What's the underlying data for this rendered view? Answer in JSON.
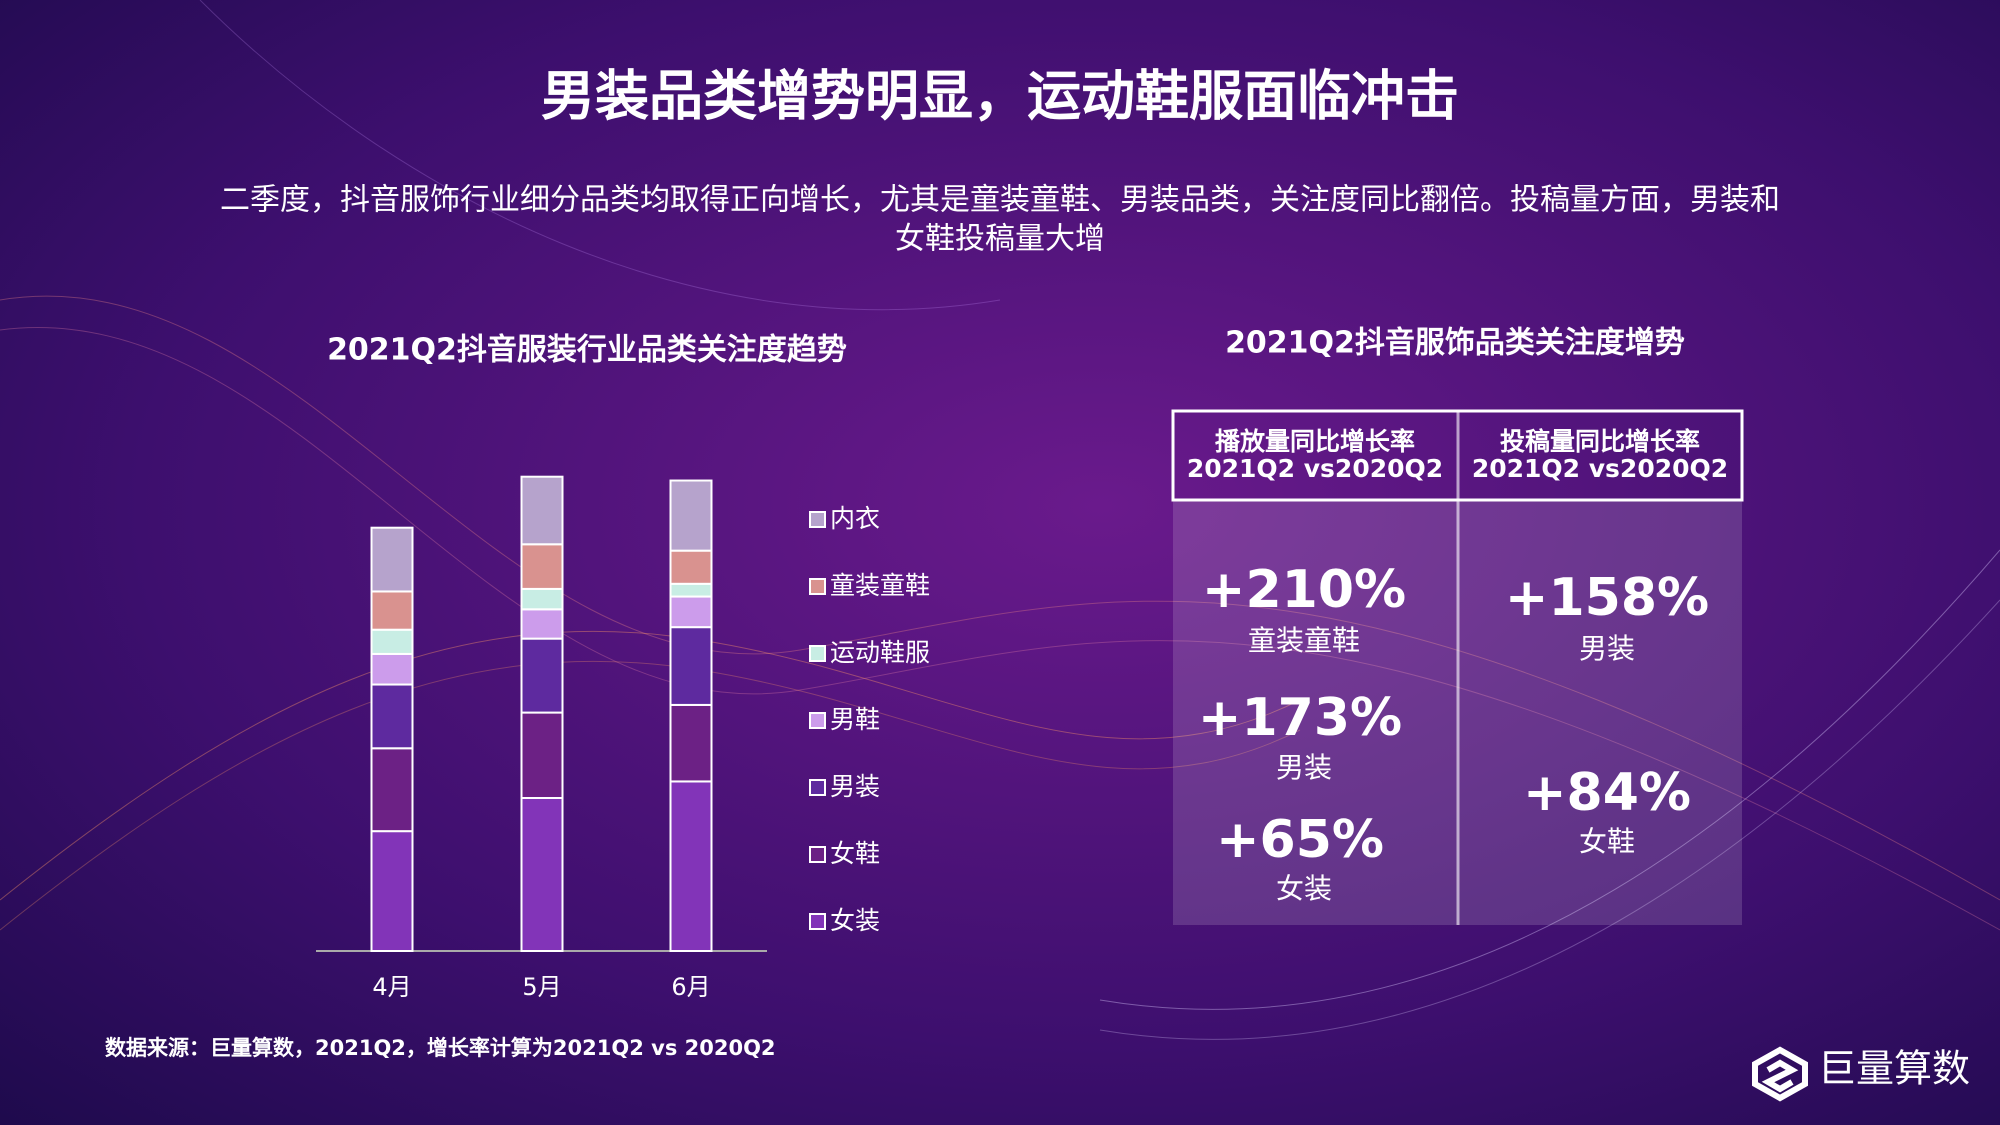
{
  "title": "男装品类增势明显，运动鞋服面临冲击",
  "subtitle": [
    "二季度，抖音服饰行业细分品类均取得正向增长，尤其是童装童鞋、男装品类，关注度同比翻倍。投稿量方面，男装和",
    "女鞋投稿量大增"
  ],
  "chart_data": {
    "type": "bar",
    "stacked": true,
    "title": "2021Q2抖音服装行业品类关注度趋势",
    "categories": [
      "4月",
      "5月",
      "6月"
    ],
    "ylim": [
      0,
      400
    ],
    "series": [
      {
        "name": "女装",
        "color": "#8234b8",
        "values": [
          94,
          120,
          133
        ]
      },
      {
        "name": "女鞋",
        "color": "#6c2185",
        "values": [
          65,
          67,
          60
        ]
      },
      {
        "name": "男装",
        "color": "#5e2a9f",
        "values": [
          50,
          58,
          61
        ]
      },
      {
        "name": "男鞋",
        "color": "#cc9ceb",
        "values": [
          24,
          23,
          24
        ]
      },
      {
        "name": "运动鞋服",
        "color": "#c8ede4",
        "values": [
          19,
          16,
          10
        ]
      },
      {
        "name": "童装童鞋",
        "color": "#d9928f",
        "values": [
          30,
          35,
          26
        ]
      },
      {
        "name": "内衣",
        "color": "#b6a3cc",
        "values": [
          50,
          53,
          55
        ]
      }
    ]
  },
  "table": {
    "title": "2021Q2抖音服饰品类关注度增势",
    "columns": [
      {
        "header": [
          "播放量同比增长率",
          "2021Q2 vs2020Q2"
        ],
        "items": [
          {
            "value": "+210%",
            "label": "童装童鞋"
          },
          {
            "value": "+173%",
            "label": "男装"
          },
          {
            "value": "+65%",
            "label": "女装"
          }
        ]
      },
      {
        "header": [
          "投稿量同比增长率",
          "2021Q2 vs2020Q2"
        ],
        "items": [
          {
            "value": "+158%",
            "label": "男装"
          },
          {
            "value": "+84%",
            "label": "女鞋"
          }
        ]
      }
    ]
  },
  "source": "数据来源：巨量算数，2021Q2，增长率计算为2021Q2 vs 2020Q2",
  "logo": "巨量算数"
}
